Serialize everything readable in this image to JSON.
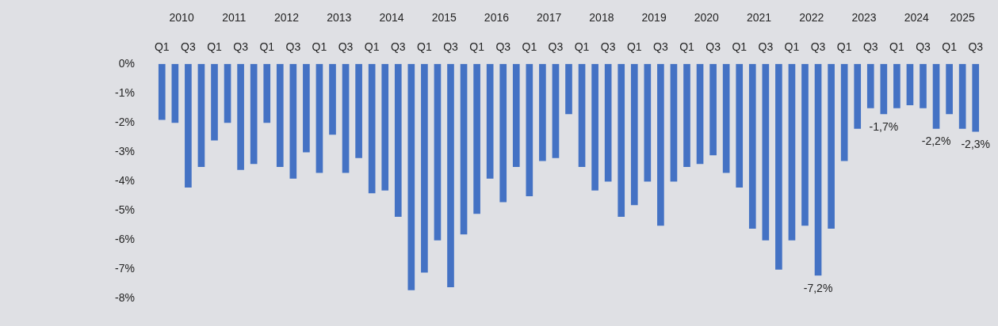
{
  "chart_data": {
    "type": "bar",
    "categories": [
      "Q1",
      null,
      "Q3",
      null,
      "Q1",
      null,
      "Q3",
      null,
      "Q1",
      null,
      "Q3",
      null,
      "Q1",
      null,
      "Q3",
      null,
      "Q1",
      null,
      "Q3",
      null,
      "Q1",
      null,
      "Q3",
      null,
      "Q1",
      null,
      "Q3",
      null,
      "Q1",
      null,
      "Q3",
      null,
      "Q1",
      null,
      "Q3",
      null,
      "Q1",
      null,
      "Q3",
      null,
      "Q1",
      null,
      "Q3",
      null,
      "Q1",
      null,
      "Q3",
      null,
      "Q1",
      null,
      "Q3",
      null,
      "Q1",
      null,
      "Q3",
      null,
      "Q1",
      null,
      "Q3",
      null,
      "Q1",
      null,
      "Q3"
    ],
    "values": [
      -1.9,
      -2.0,
      -4.2,
      -3.5,
      -2.6,
      -2.0,
      -3.6,
      -3.4,
      -2.0,
      -3.5,
      -3.9,
      -3.0,
      -3.7,
      -2.4,
      -3.7,
      -3.2,
      -4.4,
      -4.3,
      -5.2,
      -7.7,
      -7.1,
      -6.0,
      -7.6,
      -5.8,
      -5.1,
      -3.9,
      -4.7,
      -3.5,
      -4.5,
      -3.3,
      -3.2,
      -1.7,
      -3.5,
      -4.3,
      -4.0,
      -5.2,
      -4.8,
      -4.0,
      -5.5,
      -4.0,
      -3.5,
      -3.4,
      -3.1,
      -3.7,
      -4.2,
      -5.6,
      -6.0,
      -7.0,
      -6.0,
      -5.5,
      -7.2,
      -5.6,
      -3.3,
      -2.2,
      -1.5,
      -1.7,
      -1.5,
      -1.4,
      -1.5,
      -2.2,
      -1.7,
      -2.2,
      -2.3
    ],
    "value_labels": [
      null,
      null,
      null,
      null,
      null,
      null,
      null,
      null,
      null,
      null,
      null,
      null,
      null,
      null,
      null,
      null,
      null,
      null,
      null,
      null,
      null,
      null,
      null,
      null,
      null,
      null,
      null,
      null,
      null,
      null,
      null,
      null,
      null,
      null,
      null,
      null,
      null,
      null,
      null,
      null,
      null,
      null,
      null,
      null,
      null,
      null,
      null,
      null,
      null,
      null,
      "-7,2%",
      null,
      null,
      null,
      null,
      "-1,7%",
      null,
      null,
      null,
      "-2,2%",
      null,
      null,
      "-2,3%"
    ],
    "color": "#4472c4",
    "ylim": [
      -8,
      0
    ],
    "yticks": [
      {
        "value": 0,
        "label": "0%"
      },
      {
        "value": -1,
        "label": "-1%"
      },
      {
        "value": -2,
        "label": "-2%"
      },
      {
        "value": -3,
        "label": "-3%"
      },
      {
        "value": -4,
        "label": "-4%"
      },
      {
        "value": -5,
        "label": "-5%"
      },
      {
        "value": -6,
        "label": "-6%"
      },
      {
        "value": -7,
        "label": "-7%"
      },
      {
        "value": -8,
        "label": "-8%"
      }
    ],
    "annotations": [
      "2010",
      "2011",
      "2012",
      "2013",
      "2014",
      "2015",
      "2016",
      "2017",
      "2018",
      "2019",
      "2020",
      "2021",
      "2022",
      "2023",
      "2024",
      "2025"
    ],
    "grid": false,
    "legend": false
  }
}
